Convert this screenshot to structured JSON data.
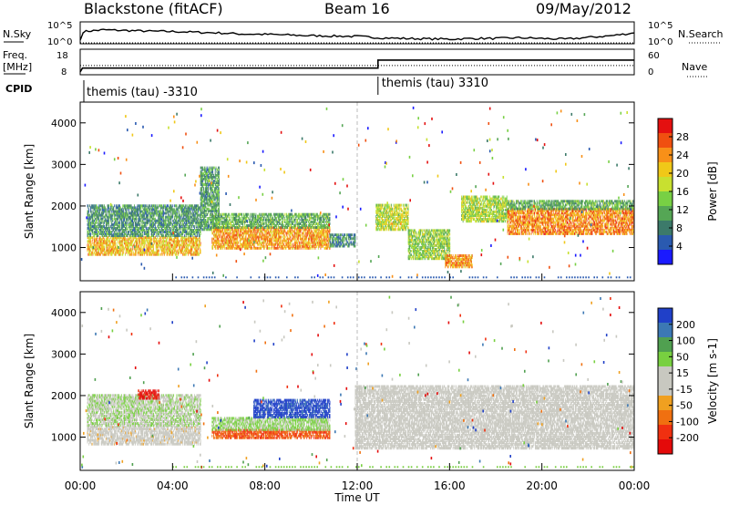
{
  "header": {
    "station": "Blackstone (fitACF)",
    "beam": "Beam 16",
    "date": "09/May/2012"
  },
  "top_panels": {
    "nsky_label": "N.Sky",
    "nsearch_label": "N.Search",
    "nsky_ticks": [
      "10^5",
      "10^0"
    ],
    "freq_label": "Freq.",
    "freq_unit": "[MHz]",
    "freq_ticks": [
      "18",
      "8"
    ],
    "nave_label": "Nave",
    "nave_ticks": [
      "60",
      "0"
    ],
    "cpid_label": "CPID",
    "cpid_segments": [
      {
        "name": "themis (tau) -3310",
        "start_hour": 0.0
      },
      {
        "name": "themis (tau) 3310",
        "start_hour": 12.9
      }
    ],
    "noise_series": [
      {
        "hour": 0.0,
        "log": 0.5
      },
      {
        "hour": 0.15,
        "log": 3.0
      },
      {
        "hour": 1.0,
        "log": 3.5
      },
      {
        "hour": 2.0,
        "log": 3.3
      },
      {
        "hour": 3.0,
        "log": 3.1
      },
      {
        "hour": 4.0,
        "log": 3.0
      },
      {
        "hour": 5.0,
        "log": 2.8
      },
      {
        "hour": 6.0,
        "log": 2.6
      },
      {
        "hour": 7.0,
        "log": 2.3
      },
      {
        "hour": 8.0,
        "log": 2.2
      },
      {
        "hour": 9.0,
        "log": 2.0
      },
      {
        "hour": 10.0,
        "log": 1.8
      },
      {
        "hour": 11.0,
        "log": 1.7
      },
      {
        "hour": 12.0,
        "log": 1.6
      },
      {
        "hour": 13.0,
        "log": 1.2
      },
      {
        "hour": 14.0,
        "log": 1.0
      },
      {
        "hour": 15.0,
        "log": 0.9
      },
      {
        "hour": 16.0,
        "log": 0.8
      },
      {
        "hour": 17.0,
        "log": 1.0
      },
      {
        "hour": 18.0,
        "log": 1.0
      },
      {
        "hour": 19.0,
        "log": 1.2
      },
      {
        "hour": 20.0,
        "log": 1.0
      },
      {
        "hour": 21.0,
        "log": 0.8
      },
      {
        "hour": 22.0,
        "log": 1.3
      },
      {
        "hour": 23.0,
        "log": 1.8
      },
      {
        "hour": 24.0,
        "log": 2.6
      }
    ],
    "freq_series": [
      {
        "hour": 0.0,
        "mhz": 8.5
      },
      {
        "hour": 0.1,
        "mhz": 10.4
      },
      {
        "hour": 12.9,
        "mhz": 10.4
      },
      {
        "hour": 12.9,
        "mhz": 14.4
      },
      {
        "hour": 24.0,
        "mhz": 14.4
      }
    ],
    "nave_level": 22
  },
  "chart_data": [
    {
      "type": "heatmap",
      "name": "power",
      "ylabel": "Slant Range [km]",
      "xlabel": "Time UT",
      "xlim_hours": [
        0,
        24
      ],
      "ylim_km": [
        200,
        4500
      ],
      "yticks": [
        "4000",
        "3000",
        "2000",
        "1000"
      ],
      "colorbar_label": "Power [dB]",
      "colorbar_ticks": [
        "28",
        "24",
        "20",
        "16",
        "12",
        "8",
        "4"
      ],
      "colorbar_range": [
        0,
        30
      ],
      "colors": [
        "#1a1aff",
        "#2a5ab0",
        "#3c7a6a",
        "#55a655",
        "#78d044",
        "#c8e030",
        "#f0c818",
        "#f89018",
        "#f05010",
        "#e41010"
      ],
      "echo_bands": [
        {
          "t0": 0.3,
          "t1": 5.2,
          "r0": 800,
          "r1": 1250,
          "power": 20
        },
        {
          "t0": 0.3,
          "t1": 5.2,
          "r0": 1250,
          "r1": 2000,
          "power": 9
        },
        {
          "t0": 5.2,
          "t1": 6.0,
          "r0": 1400,
          "r1": 2900,
          "power": 10
        },
        {
          "t0": 5.7,
          "t1": 10.8,
          "r0": 950,
          "r1": 1450,
          "power": 22
        },
        {
          "t0": 5.7,
          "t1": 10.8,
          "r0": 1450,
          "r1": 1800,
          "power": 11
        },
        {
          "t0": 10.8,
          "t1": 11.9,
          "r0": 1000,
          "r1": 1300,
          "power": 8
        },
        {
          "t0": 12.8,
          "t1": 14.2,
          "r0": 1400,
          "r1": 2000,
          "power": 16
        },
        {
          "t0": 14.2,
          "t1": 16.0,
          "r0": 700,
          "r1": 1400,
          "power": 14
        },
        {
          "t0": 15.8,
          "t1": 17.0,
          "r0": 500,
          "r1": 800,
          "power": 22
        },
        {
          "t0": 16.5,
          "t1": 18.5,
          "r0": 1600,
          "r1": 2200,
          "power": 15
        },
        {
          "t0": 18.5,
          "t1": 24.0,
          "r0": 1300,
          "r1": 1900,
          "power": 23
        },
        {
          "t0": 18.5,
          "t1": 24.0,
          "r0": 1900,
          "r1": 2100,
          "power": 11
        }
      ]
    },
    {
      "type": "heatmap",
      "name": "velocity",
      "ylabel": "Slant Range [km]",
      "xlabel": "Time UT",
      "xlim_hours": [
        0,
        24
      ],
      "ylim_km": [
        200,
        4500
      ],
      "yticks": [
        "4000",
        "3000",
        "2000",
        "1000"
      ],
      "colorbar_label": "Velocity [m s-1]",
      "colorbar_ticks": [
        "200",
        "100",
        "50",
        "15",
        "-15",
        "-50",
        "-100",
        "-200"
      ],
      "colorbar_range": [
        -250,
        250
      ],
      "colors": [
        "#2040c8",
        "#3c78b4",
        "#50a050",
        "#78d040",
        "#c8c8c0",
        "#c8c8c0",
        "#f0a020",
        "#f07010",
        "#f03010",
        "#e40a0a"
      ],
      "echo_bands": [
        {
          "t0": 0.3,
          "t1": 5.2,
          "r0": 800,
          "r1": 1250,
          "velocity": -20
        },
        {
          "t0": 0.3,
          "t1": 5.2,
          "r0": 1250,
          "r1": 2000,
          "velocity": 40
        },
        {
          "t0": 2.5,
          "t1": 3.4,
          "r0": 1900,
          "r1": 2100,
          "velocity": -220
        },
        {
          "t0": 5.7,
          "t1": 10.8,
          "r0": 950,
          "r1": 1150,
          "velocity": -150
        },
        {
          "t0": 5.7,
          "t1": 10.8,
          "r0": 1150,
          "r1": 1450,
          "velocity": 60
        },
        {
          "t0": 7.5,
          "t1": 10.8,
          "r0": 1450,
          "r1": 1900,
          "velocity": 220
        },
        {
          "t0": 11.9,
          "t1": 24.0,
          "r0": 700,
          "r1": 2200,
          "velocity": 0
        }
      ]
    }
  ],
  "x_axis": {
    "label": "Time UT",
    "tick_labels": [
      "00:00",
      "04:00",
      "08:00",
      "12:00",
      "16:00",
      "20:00",
      "00:00"
    ]
  }
}
